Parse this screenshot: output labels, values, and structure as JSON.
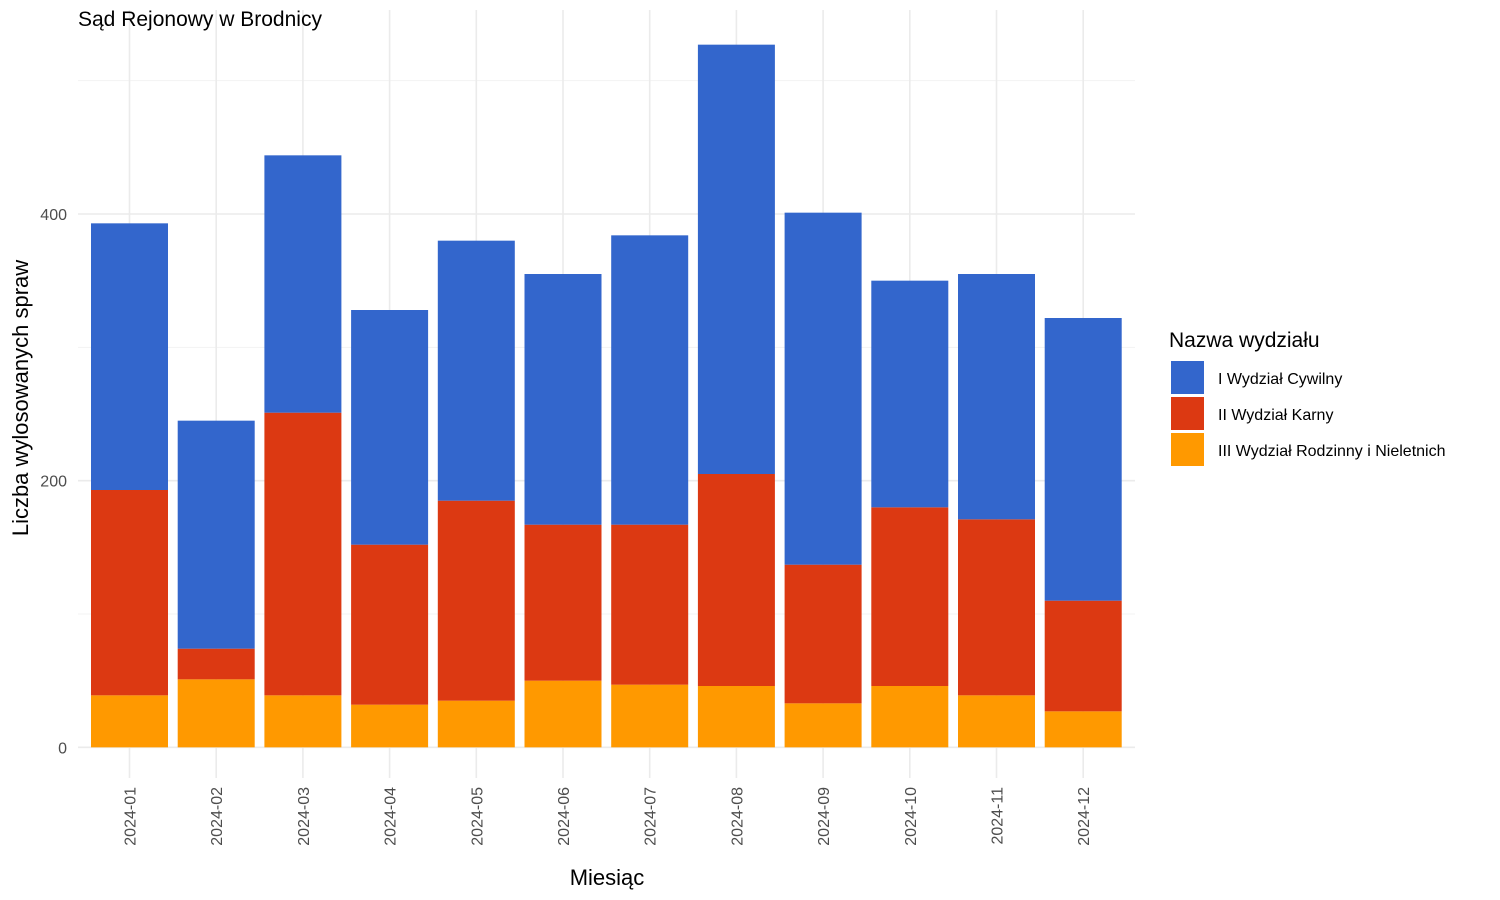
{
  "chart_data": {
    "type": "bar",
    "stacked": true,
    "title": "Sąd Rejonowy w Brodnicy",
    "xlabel": "Miesiąc",
    "ylabel": "Liczba wylosowanych spraw",
    "categories": [
      "2024-01",
      "2024-02",
      "2024-03",
      "2024-04",
      "2024-05",
      "2024-06",
      "2024-07",
      "2024-08",
      "2024-09",
      "2024-10",
      "2024-11",
      "2024-12"
    ],
    "yticks": [
      0,
      200,
      400
    ],
    "ylim": [
      -23,
      553
    ],
    "grid": true,
    "legend": {
      "title": "Nazwa wydziału",
      "position": "right"
    },
    "series": [
      {
        "name": "III Wydział Rodzinny i Nieletnich",
        "color": "#FF9900",
        "values": [
          39,
          51,
          39,
          32,
          35,
          50,
          47,
          46,
          33,
          46,
          39,
          27
        ]
      },
      {
        "name": "II Wydział Karny",
        "color": "#DC3912",
        "values": [
          154,
          23,
          212,
          120,
          150,
          117,
          120,
          159,
          104,
          134,
          132,
          83
        ]
      },
      {
        "name": "I Wydział Cywilny",
        "color": "#3366CC",
        "values": [
          200,
          171,
          193,
          176,
          195,
          188,
          217,
          322,
          264,
          170,
          184,
          212
        ]
      }
    ],
    "legend_order": [
      "I Wydział Cywilny",
      "II Wydział Karny",
      "III Wydział Rodzinny i Nieletnich"
    ]
  }
}
